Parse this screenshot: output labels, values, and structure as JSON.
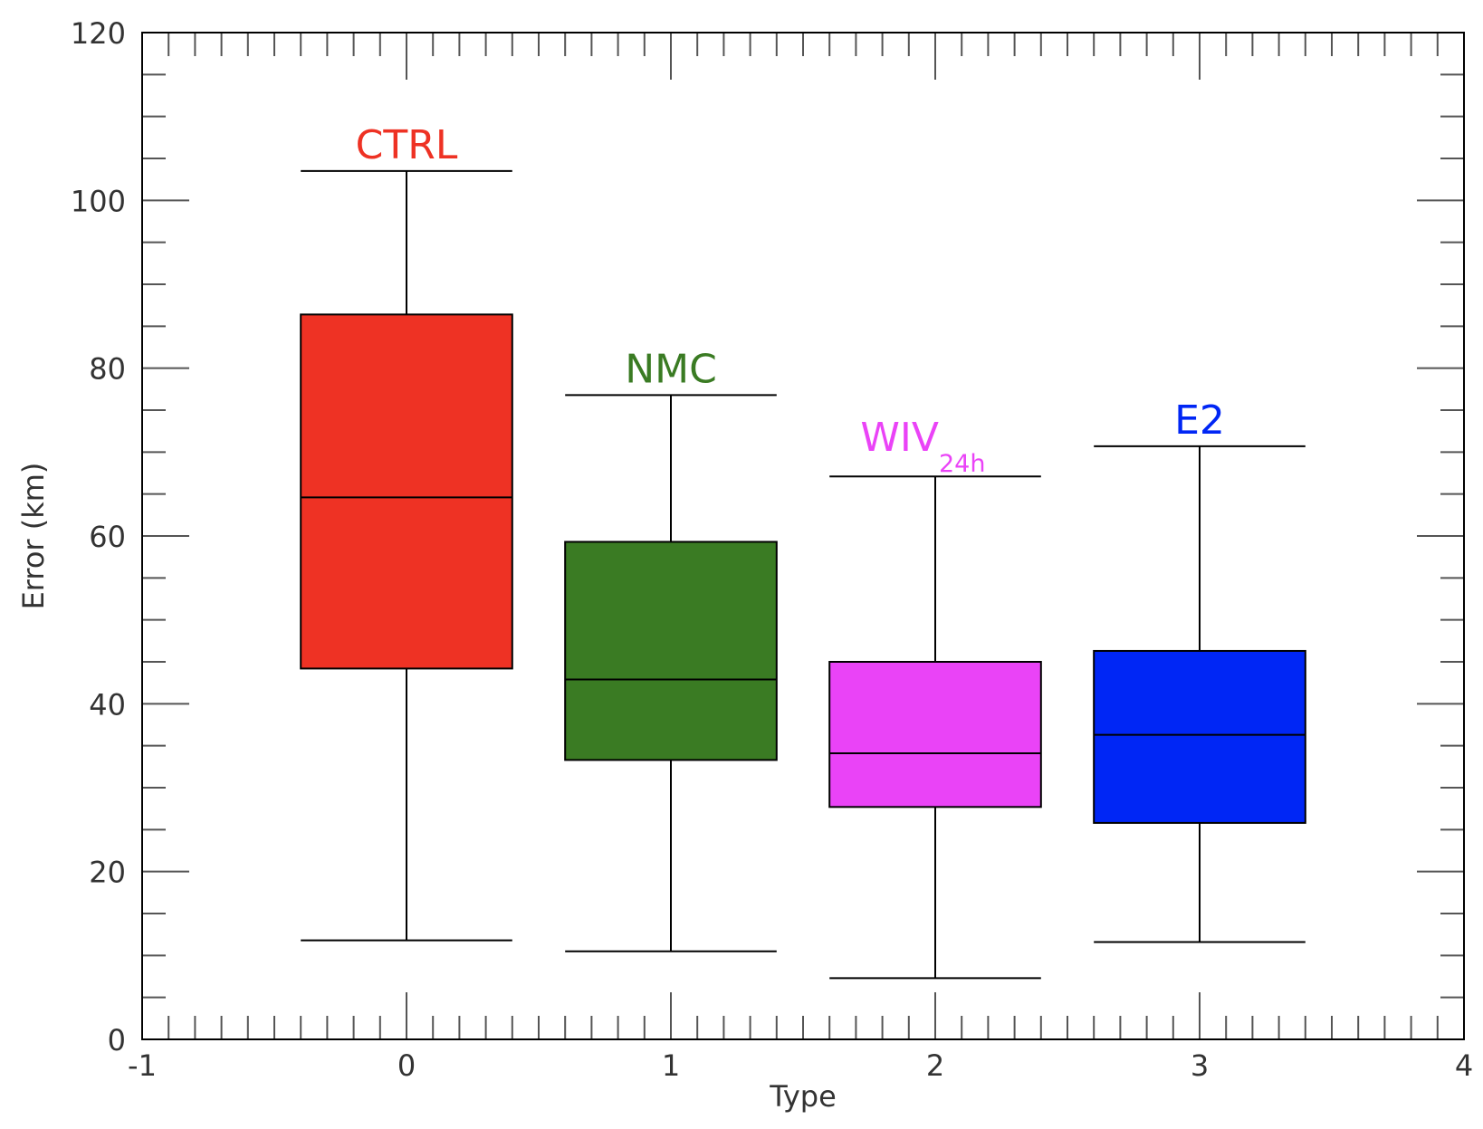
{
  "chart_data": {
    "type": "boxplot",
    "xlabel": "Type",
    "ylabel": "Error (km)",
    "xlim": [
      -1,
      4
    ],
    "ylim": [
      0,
      120
    ],
    "xticks": [
      -1,
      0,
      1,
      2,
      3,
      4
    ],
    "yticks": [
      0,
      20,
      40,
      60,
      80,
      100,
      120
    ],
    "grid": false,
    "boxes": [
      {
        "label": "CTRL",
        "subscript": "",
        "x": 0,
        "color": "#ee3224",
        "whisker_low": 11.8,
        "q1": 44.2,
        "median": 64.6,
        "q3": 86.4,
        "whisker_high": 103.5
      },
      {
        "label": "NMC",
        "subscript": "",
        "x": 1,
        "color": "#3a7b23",
        "whisker_low": 10.5,
        "q1": 33.3,
        "median": 42.9,
        "q3": 59.3,
        "whisker_high": 76.8
      },
      {
        "label": "WIV",
        "subscript": "24h",
        "x": 2,
        "color": "#ea43f7",
        "whisker_low": 7.3,
        "q1": 27.7,
        "median": 34.1,
        "q3": 45.0,
        "whisker_high": 67.1
      },
      {
        "label": "E2",
        "subscript": "",
        "x": 3,
        "color": "#0026f5",
        "whisker_low": 11.6,
        "q1": 25.8,
        "median": 36.3,
        "q3": 46.3,
        "whisker_high": 70.7
      }
    ]
  }
}
